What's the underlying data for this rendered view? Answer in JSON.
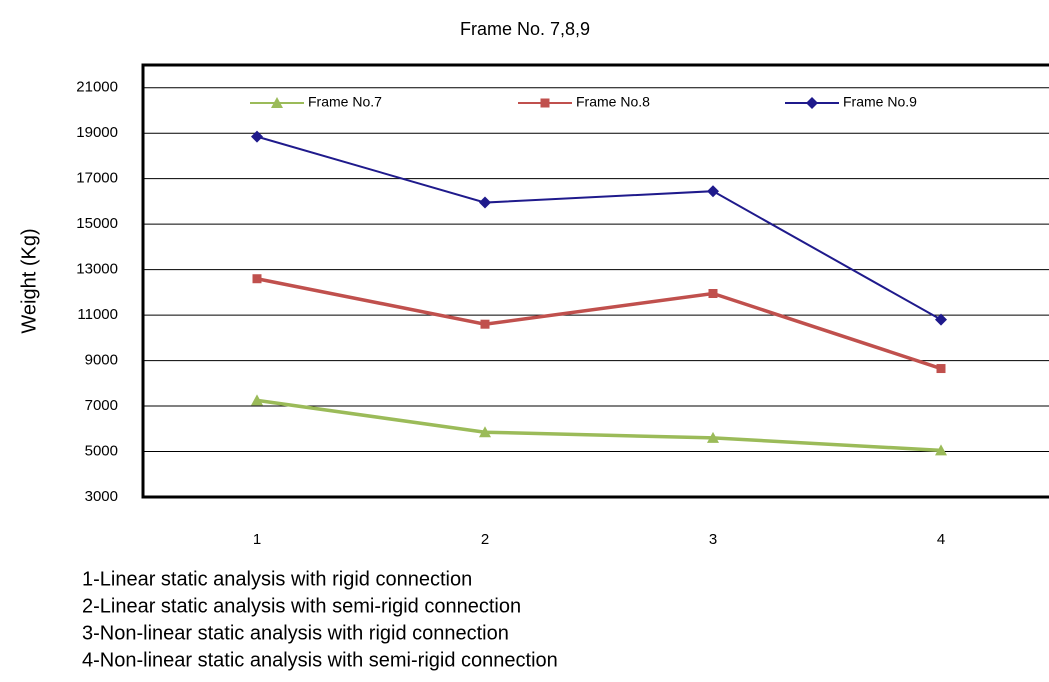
{
  "chart_data": {
    "type": "line",
    "title": "Frame No. 7,8,9",
    "y_label": "Weight (Kg)",
    "categories": [
      "1",
      "2",
      "3",
      "4"
    ],
    "series": [
      {
        "name": "Frame No.7",
        "color": "#9bbb59",
        "marker": "triangle",
        "values": [
          7250,
          5850,
          5600,
          5050
        ]
      },
      {
        "name": "Frame No.8",
        "color": "#c0504d",
        "marker": "square",
        "values": [
          12600,
          10600,
          11950,
          8650
        ]
      },
      {
        "name": "Frame No.9",
        "color": "#1f1a8c",
        "marker": "diamond",
        "values": [
          18850,
          15950,
          16450,
          10800
        ]
      }
    ],
    "ylim": [
      3000,
      22000
    ],
    "yticks": [
      3000,
      5000,
      7000,
      9000,
      11000,
      13000,
      15000,
      17000,
      19000,
      21000
    ],
    "grid": true,
    "legend": "top",
    "annotations": [
      "1-Linear static analysis with rigid connection",
      "2-Linear static analysis with semi-rigid connection",
      "3-Non-linear static analysis with rigid connection",
      "4-Non-linear static analysis with semi-rigid connection"
    ]
  }
}
